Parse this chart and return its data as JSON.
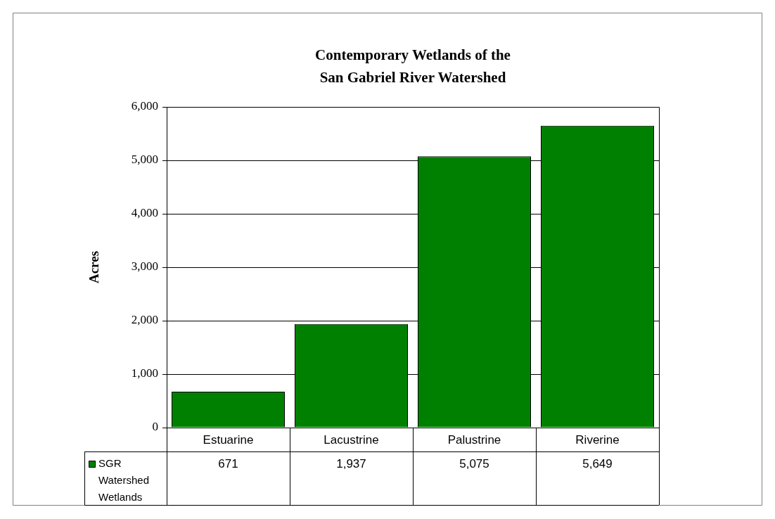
{
  "chart_data": {
    "type": "bar",
    "title": "Contemporary Wetlands of the San Gabriel River Watershed",
    "ylabel": "Acres",
    "categories": [
      "Estuarine",
      "Lacustrine",
      "Palustrine",
      "Riverine"
    ],
    "series": [
      {
        "name": "SGR Watershed Wetlands",
        "color": "#008000",
        "values": [
          671,
          1937,
          5075,
          5649
        ],
        "value_labels": [
          "671",
          "1,937",
          "5,075",
          "5,649"
        ]
      }
    ],
    "ylim": [
      0,
      6000
    ],
    "yticks": [
      {
        "value": 0,
        "label": "0"
      },
      {
        "value": 1000,
        "label": "1,000"
      },
      {
        "value": 2000,
        "label": "2,000"
      },
      {
        "value": 3000,
        "label": "3,000"
      },
      {
        "value": 4000,
        "label": "4,000"
      },
      {
        "value": 5000,
        "label": "5,000"
      },
      {
        "value": 6000,
        "label": "6,000"
      }
    ],
    "grid": "y",
    "legend": "bottom left"
  }
}
